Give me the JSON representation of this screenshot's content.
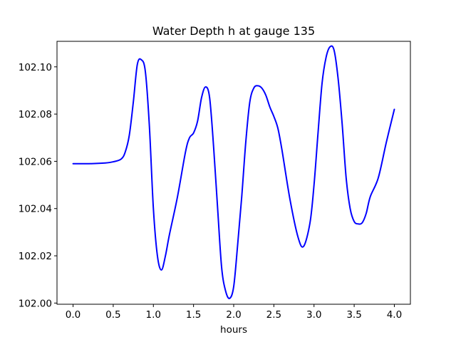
{
  "chart_data": {
    "type": "line",
    "title": "Water Depth h at gauge 135",
    "xlabel": "hours",
    "ylabel": "",
    "xlim": [
      -0.2,
      4.2
    ],
    "ylim": [
      101.9995,
      102.1108
    ],
    "xticks": [
      0.0,
      0.5,
      1.0,
      1.5,
      2.0,
      2.5,
      3.0,
      3.5,
      4.0
    ],
    "xtick_labels": [
      "0.0",
      "0.5",
      "1.0",
      "1.5",
      "2.0",
      "2.5",
      "3.0",
      "3.5",
      "4.0"
    ],
    "yticks": [
      102.0,
      102.02,
      102.04,
      102.06,
      102.08,
      102.1
    ],
    "ytick_labels": [
      "102.00",
      "102.02",
      "102.04",
      "102.06",
      "102.08",
      "102.10"
    ],
    "grid": false,
    "series": [
      {
        "color": "#0000ff",
        "x": [
          0.0,
          0.2,
          0.4,
          0.5,
          0.6,
          0.65,
          0.7,
          0.75,
          0.8,
          0.85,
          0.9,
          0.95,
          1.0,
          1.05,
          1.1,
          1.15,
          1.2,
          1.3,
          1.4,
          1.45,
          1.5,
          1.55,
          1.6,
          1.65,
          1.7,
          1.75,
          1.8,
          1.85,
          1.9,
          1.95,
          2.0,
          2.05,
          2.1,
          2.15,
          2.2,
          2.25,
          2.3,
          2.35,
          2.4,
          2.45,
          2.5,
          2.55,
          2.6,
          2.7,
          2.8,
          2.87,
          2.95,
          3.0,
          3.05,
          3.1,
          3.15,
          3.2,
          3.25,
          3.3,
          3.35,
          3.4,
          3.45,
          3.5,
          3.55,
          3.6,
          3.65,
          3.7,
          3.8,
          3.9,
          4.0
        ],
        "y": [
          102.059,
          102.059,
          102.0593,
          102.0598,
          102.061,
          102.064,
          102.071,
          102.085,
          102.101,
          102.103,
          102.098,
          102.075,
          102.04,
          102.02,
          102.014,
          102.02,
          102.029,
          102.045,
          102.064,
          102.07,
          102.072,
          102.077,
          102.087,
          102.0915,
          102.087,
          102.066,
          102.04,
          102.015,
          102.005,
          102.002,
          102.007,
          102.025,
          102.045,
          102.068,
          102.085,
          102.091,
          102.092,
          102.091,
          102.088,
          102.083,
          102.079,
          102.074,
          102.065,
          102.044,
          102.028,
          102.024,
          102.034,
          102.05,
          102.072,
          102.093,
          102.104,
          102.1085,
          102.107,
          102.095,
          102.076,
          102.053,
          102.04,
          102.0345,
          102.0335,
          102.034,
          102.038,
          102.045,
          102.053,
          102.068,
          102.082
        ]
      }
    ]
  }
}
